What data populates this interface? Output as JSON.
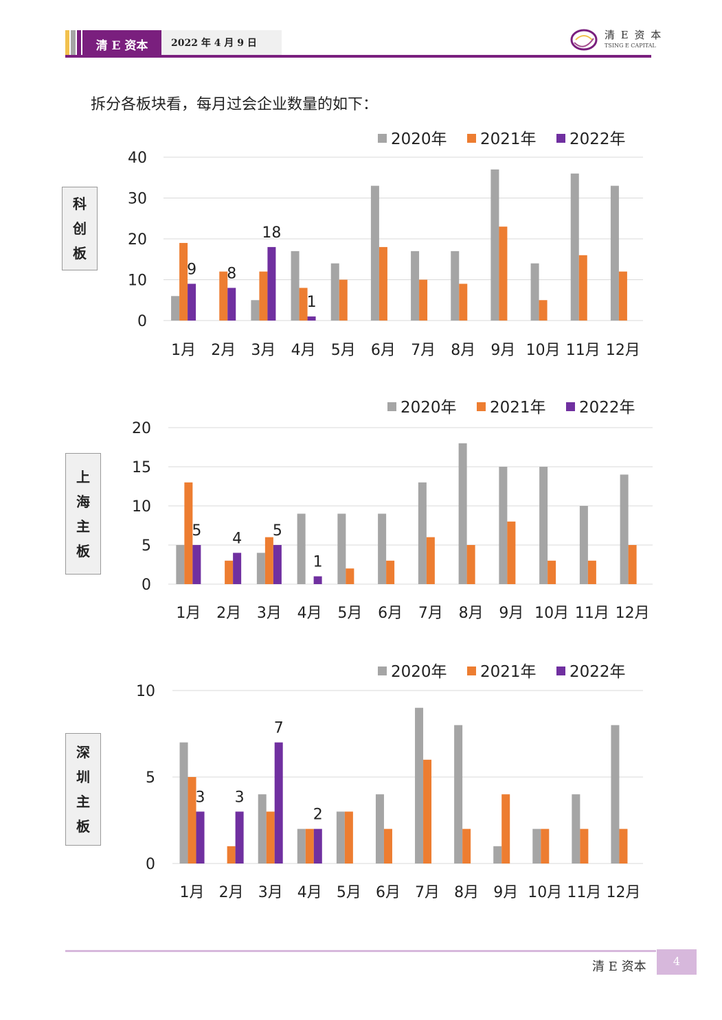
{
  "header": {
    "brand": "清 E 资本",
    "date": "2022 年 4 月 9 日",
    "logo_cn": "清 E 资 本",
    "logo_en": "TSING E CAPITAL",
    "colors": {
      "brand_purple": "#7a1f7e",
      "yellow_stripe": "#f2c14e",
      "light_purple": "#d7b8dc"
    }
  },
  "intro_text": "拆分各板块看，每月过会企业数量的如下：",
  "footer": {
    "brand": "清 E 资本",
    "page_number": "4"
  },
  "chart_data": [
    {
      "type": "bar",
      "board_label": [
        "科",
        "创",
        "板"
      ],
      "categories": [
        "1月",
        "2月",
        "3月",
        "4月",
        "5月",
        "6月",
        "7月",
        "8月",
        "9月",
        "10月",
        "11月",
        "12月"
      ],
      "series": [
        {
          "name": "2020年",
          "color": "#a5a5a5",
          "values": [
            6,
            null,
            5,
            17,
            14,
            33,
            17,
            17,
            37,
            14,
            36,
            33
          ]
        },
        {
          "name": "2021年",
          "color": "#ed7d31",
          "values": [
            19,
            12,
            12,
            8,
            10,
            18,
            10,
            9,
            23,
            5,
            16,
            12
          ]
        },
        {
          "name": "2022年",
          "color": "#7030a0",
          "values": [
            9,
            8,
            18,
            1,
            null,
            null,
            null,
            null,
            null,
            null,
            null,
            null
          ]
        }
      ],
      "data_labels_series": "2022年",
      "ylim": [
        0,
        40
      ],
      "yticks": [
        0,
        10,
        20,
        30,
        40
      ],
      "legend": "top-right",
      "grid": true
    },
    {
      "type": "bar",
      "board_label": [
        "上",
        "海",
        "主",
        "板"
      ],
      "categories": [
        "1月",
        "2月",
        "3月",
        "4月",
        "5月",
        "6月",
        "7月",
        "8月",
        "9月",
        "10月",
        "11月",
        "12月"
      ],
      "series": [
        {
          "name": "2020年",
          "color": "#a5a5a5",
          "values": [
            5,
            null,
            4,
            9,
            9,
            9,
            13,
            18,
            15,
            15,
            10,
            14
          ]
        },
        {
          "name": "2021年",
          "color": "#ed7d31",
          "values": [
            13,
            3,
            6,
            null,
            2,
            3,
            6,
            5,
            8,
            3,
            3,
            5
          ]
        },
        {
          "name": "2022年",
          "color": "#7030a0",
          "values": [
            5,
            4,
            5,
            1,
            null,
            null,
            null,
            null,
            null,
            null,
            null,
            null
          ]
        }
      ],
      "data_labels_series": "2022年",
      "ylim": [
        0,
        20
      ],
      "yticks": [
        0,
        5,
        10,
        15,
        20
      ],
      "legend": "top-right",
      "grid": true
    },
    {
      "type": "bar",
      "board_label": [
        "深",
        "圳",
        "主",
        "板"
      ],
      "categories": [
        "1月",
        "2月",
        "3月",
        "4月",
        "5月",
        "6月",
        "7月",
        "8月",
        "9月",
        "10月",
        "11月",
        "12月"
      ],
      "series": [
        {
          "name": "2020年",
          "color": "#a5a5a5",
          "values": [
            7,
            null,
            4,
            2,
            3,
            4,
            9,
            8,
            1,
            2,
            4,
            8
          ]
        },
        {
          "name": "2021年",
          "color": "#ed7d31",
          "values": [
            5,
            1,
            3,
            2,
            3,
            2,
            6,
            2,
            4,
            2,
            2,
            2
          ]
        },
        {
          "name": "2022年",
          "color": "#7030a0",
          "values": [
            3,
            3,
            7,
            2,
            null,
            null,
            null,
            null,
            null,
            null,
            null,
            null
          ]
        }
      ],
      "data_labels_series": "2022年",
      "ylim": [
        0,
        10
      ],
      "yticks": [
        0,
        5,
        10
      ],
      "legend": "top-right",
      "grid": true
    }
  ]
}
